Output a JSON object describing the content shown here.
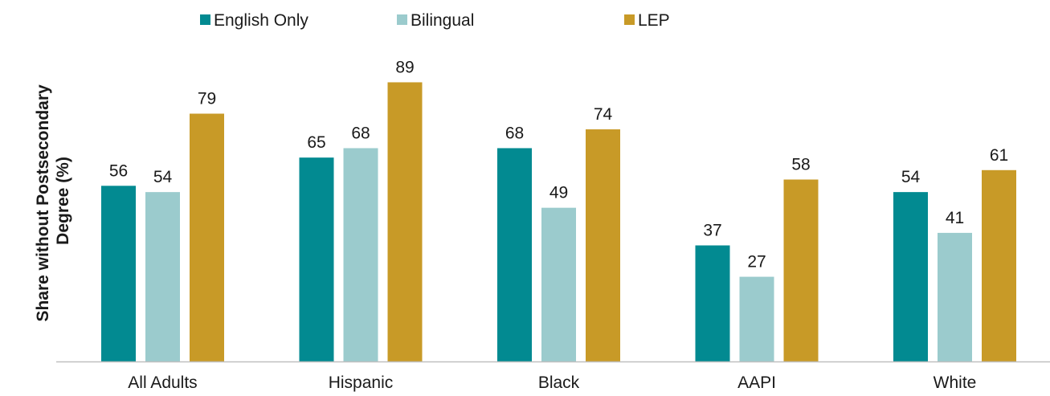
{
  "chart_data": {
    "type": "bar",
    "title": "",
    "xlabel": "",
    "ylabel": "Share without Postsecondary Degree (%)",
    "ylabel_lines": [
      "Share without Postsecondary",
      "Degree (%)"
    ],
    "ylim": [
      0,
      100
    ],
    "grid": false,
    "legend_position": "top",
    "categories": [
      "All Adults",
      "Hispanic",
      "Black",
      "AAPI",
      "White"
    ],
    "series": [
      {
        "name": "English Only",
        "color": "#028a91",
        "values": [
          56,
          65,
          68,
          37,
          54
        ]
      },
      {
        "name": "Bilingual",
        "color": "#9bcbcd",
        "values": [
          54,
          68,
          49,
          27,
          41
        ]
      },
      {
        "name": "LEP",
        "color": "#c89a27",
        "values": [
          79,
          89,
          74,
          58,
          61
        ]
      }
    ],
    "axis_color": "#bfbfbf"
  }
}
